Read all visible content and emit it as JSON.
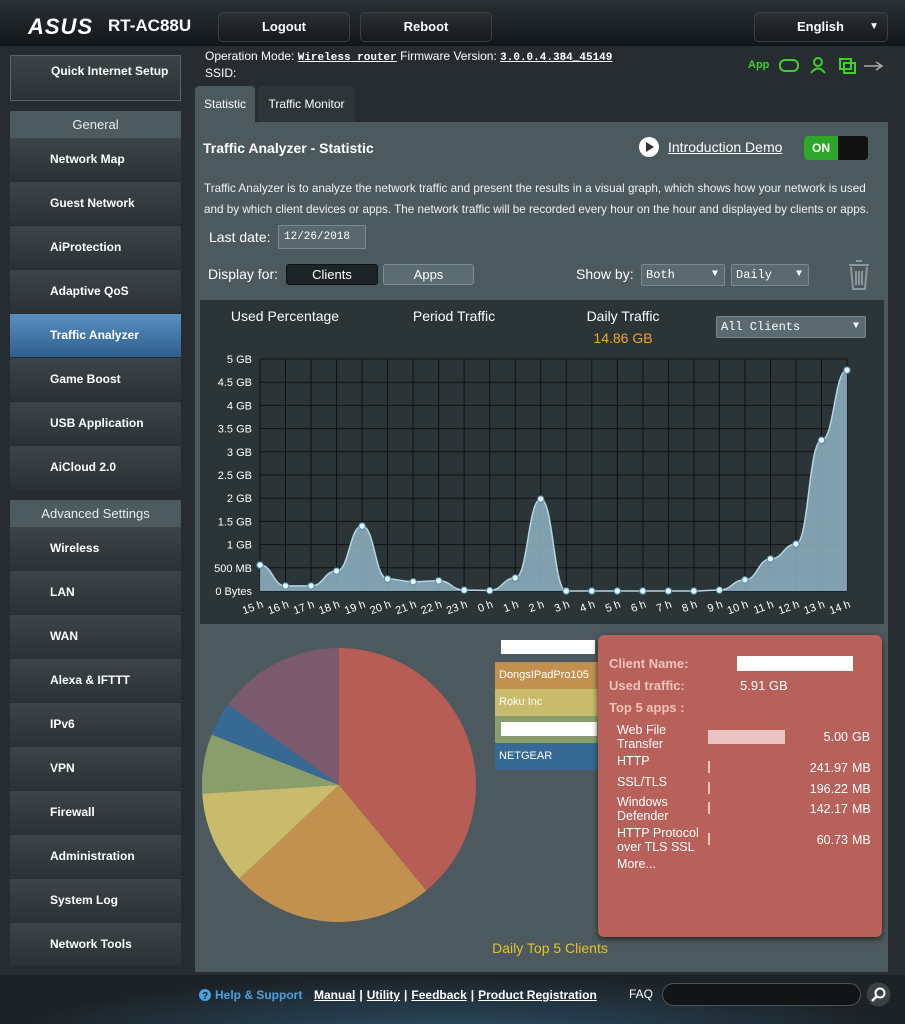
{
  "header": {
    "brand": "ASUS",
    "model": "RT-AC88U",
    "buttons": [
      "Logout",
      "Reboot"
    ],
    "language": "English"
  },
  "status": {
    "operation_mode_label": "Operation Mode:",
    "operation_mode": "Wireless router",
    "firmware_label": "Firmware Version:",
    "firmware": "3.0.0.4.384_45149",
    "ssid_label": "SSID:",
    "app": "App"
  },
  "sidebar": {
    "quick_setup": "Quick Internet Setup",
    "general_title": "General",
    "general": [
      "Network Map",
      "Guest Network",
      "AiProtection",
      "Adaptive QoS",
      "Traffic Analyzer",
      "Game Boost",
      "USB Application",
      "AiCloud 2.0"
    ],
    "advanced_title": "Advanced Settings",
    "advanced": [
      "Wireless",
      "LAN",
      "WAN",
      "Alexa & IFTTT",
      "IPv6",
      "VPN",
      "Firewall",
      "Administration",
      "System Log",
      "Network Tools"
    ]
  },
  "tabs": [
    "Statistic",
    "Traffic Monitor"
  ],
  "panel": {
    "title": "Traffic Analyzer - Statistic",
    "demo": "Introduction Demo",
    "toggle": "ON",
    "description": "Traffic Analyzer is to analyze the network traffic and present the results in a visual graph, which shows how your network is used and by which client devices or apps. The network traffic will be recorded every hour on the hour and displayed by clients or apps.",
    "last_date_label": "Last date:",
    "last_date": "12/26/2018",
    "display_for_label": "Display for:",
    "display_for": [
      "Clients",
      "Apps"
    ],
    "show_by_label": "Show by:",
    "show_by": [
      "Both",
      "Daily"
    ]
  },
  "chart_tabs": [
    "Used Percentage",
    "Period Traffic",
    "Daily Traffic"
  ],
  "daily_total": "14.86 GB",
  "client_select": "All Clients",
  "chart_data": [
    {
      "type": "area",
      "color": "#8fb4c6",
      "categories": [
        "15 h",
        "16 h",
        "17 h",
        "18 h",
        "19 h",
        "20 h",
        "21 h",
        "22 h",
        "23 h",
        "0 h",
        "1 h",
        "2 h",
        "3 h",
        "4 h",
        "5 h",
        "6 h",
        "7 h",
        "8 h",
        "9 h",
        "10 h",
        "11 h",
        "12 h",
        "13 h",
        "14 h"
      ],
      "values": [
        0.56,
        0.11,
        0.11,
        0.43,
        1.4,
        0.26,
        0.2,
        0.22,
        0.02,
        0.01,
        0.28,
        1.98,
        0,
        0,
        0,
        0,
        0,
        0,
        0.02,
        0.24,
        0.69,
        1.01,
        3.25,
        4.76
      ],
      "ylim": [
        0,
        5
      ],
      "yticks": [
        {
          "value": 0,
          "label": "0 Bytes"
        },
        {
          "value": 0.5,
          "label": "500 MB"
        },
        {
          "value": 1,
          "label": "1 GB"
        },
        {
          "value": 1.5,
          "label": "1.5 GB"
        },
        {
          "value": 2,
          "label": "2 GB"
        },
        {
          "value": 2.5,
          "label": "2.5 GB"
        },
        {
          "value": 3,
          "label": "3 GB"
        },
        {
          "value": 3.5,
          "label": "3.5 GB"
        },
        {
          "value": 4,
          "label": "4 GB"
        },
        {
          "value": 4.5,
          "label": "4.5 GB"
        },
        {
          "value": 5,
          "label": "5 GB"
        }
      ],
      "grid": true
    },
    {
      "type": "pie",
      "title": "Daily Top 5 Clients",
      "categories": [
        null,
        "DongsIPadPro105",
        "Roku Inc",
        null,
        "NETGEAR",
        null
      ],
      "values": [
        39,
        24,
        11,
        7,
        4,
        15
      ],
      "colors": [
        "#b65d55",
        "#c29150",
        "#c8bb6b",
        "#8a9e6c",
        "#366a94",
        "#7b5a6e"
      ]
    }
  ],
  "client_detail": {
    "name_label": "Client Name:",
    "traffic_label": "Used traffic:",
    "traffic": "5.91 GB",
    "apps_label": "Top 5 apps :",
    "apps": [
      {
        "name": "Web File Transfer",
        "value": "5.00",
        "unit": "GB"
      },
      {
        "name": "HTTP",
        "value": "241.97",
        "unit": "MB"
      },
      {
        "name": "SSL/TLS",
        "value": "196.22",
        "unit": "MB"
      },
      {
        "name": "Windows Defender",
        "value": "142.17",
        "unit": "MB"
      },
      {
        "name": "HTTP Protocol over TLS SSL",
        "value": "60.73",
        "unit": "MB"
      }
    ],
    "more": "More..."
  },
  "footer": {
    "help": "Help & Support",
    "links": [
      "Manual",
      "Utility",
      "Feedback",
      "Product Registration"
    ],
    "faq": "FAQ"
  }
}
